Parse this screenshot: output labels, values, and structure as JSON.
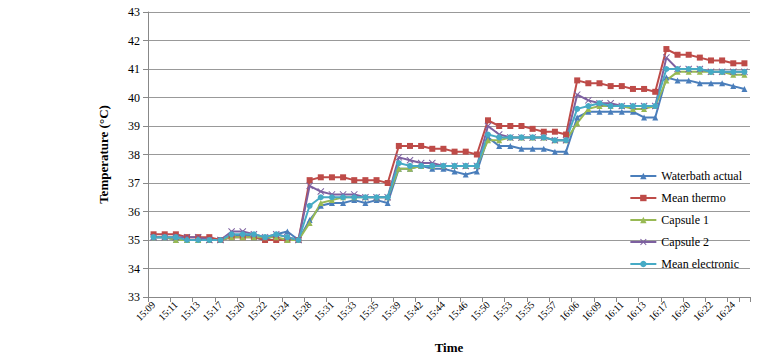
{
  "chart_data": {
    "type": "line",
    "x_label": "Time",
    "y_label": "Temperature (°C)",
    "categories": [
      "15:09",
      null,
      "15:11",
      null,
      "15:13",
      null,
      "15:17",
      null,
      "15:20",
      null,
      "15:22",
      null,
      "15:24",
      null,
      "15:28",
      null,
      "15:31",
      null,
      "15:33",
      null,
      "15:35",
      null,
      "15:39",
      null,
      "15:42",
      null,
      "15:44",
      null,
      "15:46",
      null,
      "15:50",
      null,
      "15:53",
      null,
      "15:55",
      null,
      "15:57",
      null,
      "16:06",
      null,
      "16:09",
      null,
      "16:11",
      null,
      "16:13",
      null,
      "16:17",
      null,
      "16:20",
      null,
      "16:22",
      null,
      "16:24",
      null
    ],
    "series": [
      {
        "name": "Waterbath actual",
        "color": "#4a7ebb",
        "marker": "triangle",
        "values": [
          35.1,
          35.1,
          35.0,
          35.0,
          35.0,
          35.0,
          35.0,
          35.1,
          35.2,
          35.1,
          35.0,
          35.2,
          35.3,
          35.0,
          35.7,
          36.2,
          36.3,
          36.3,
          36.4,
          36.3,
          36.4,
          36.3,
          37.5,
          37.5,
          37.6,
          37.5,
          37.5,
          37.4,
          37.3,
          37.4,
          38.6,
          38.3,
          38.3,
          38.2,
          38.2,
          38.2,
          38.1,
          38.1,
          39.3,
          39.5,
          39.5,
          39.5,
          39.5,
          39.5,
          39.3,
          39.3,
          40.7,
          40.6,
          40.6,
          40.5,
          40.5,
          40.5,
          40.4,
          40.3
        ]
      },
      {
        "name": "Mean thermo",
        "color": "#be4b48",
        "marker": "square",
        "values": [
          35.2,
          35.2,
          35.2,
          35.1,
          35.1,
          35.1,
          35.0,
          35.1,
          35.1,
          35.1,
          35.0,
          35.0,
          35.0,
          35.0,
          37.1,
          37.2,
          37.2,
          37.2,
          37.1,
          37.1,
          37.1,
          37.0,
          38.3,
          38.3,
          38.3,
          38.2,
          38.2,
          38.1,
          38.1,
          38.0,
          39.2,
          39.0,
          39.0,
          39.0,
          38.9,
          38.8,
          38.8,
          38.7,
          40.6,
          40.5,
          40.5,
          40.4,
          40.4,
          40.3,
          40.3,
          40.2,
          41.7,
          41.5,
          41.5,
          41.4,
          41.3,
          41.3,
          41.2,
          41.2
        ]
      },
      {
        "name": "Capsule 1",
        "color": "#98b954",
        "marker": "triangle",
        "values": [
          35.1,
          35.1,
          35.0,
          35.0,
          35.0,
          35.0,
          35.0,
          35.1,
          35.1,
          35.1,
          35.1,
          35.1,
          35.0,
          35.0,
          35.6,
          36.3,
          36.4,
          36.5,
          36.5,
          36.5,
          36.5,
          36.5,
          37.5,
          37.5,
          37.6,
          37.6,
          37.6,
          37.6,
          37.6,
          37.6,
          38.5,
          38.5,
          38.6,
          38.6,
          38.6,
          38.6,
          38.5,
          38.5,
          39.1,
          39.6,
          39.7,
          39.7,
          39.7,
          39.6,
          39.6,
          39.7,
          40.6,
          40.9,
          40.9,
          40.9,
          40.9,
          40.9,
          40.8,
          40.8
        ]
      },
      {
        "name": "Capsule 2",
        "color": "#7d60a0",
        "marker": "x",
        "values": [
          35.1,
          35.1,
          35.1,
          35.1,
          35.1,
          35.0,
          35.0,
          35.3,
          35.3,
          35.2,
          35.1,
          35.2,
          35.1,
          35.0,
          36.9,
          36.7,
          36.6,
          36.6,
          36.6,
          36.5,
          36.5,
          36.5,
          37.9,
          37.8,
          37.7,
          37.7,
          37.6,
          37.6,
          37.6,
          37.6,
          39.0,
          38.7,
          38.6,
          38.6,
          38.6,
          38.6,
          38.5,
          38.5,
          40.1,
          39.9,
          39.8,
          39.8,
          39.7,
          39.7,
          39.7,
          39.7,
          41.4,
          41.0,
          41.0,
          41.0,
          40.9,
          40.9,
          40.9,
          40.9
        ]
      },
      {
        "name": "Mean electronic",
        "color": "#46aac5",
        "marker": "circle",
        "values": [
          35.1,
          35.1,
          35.1,
          35.0,
          35.0,
          35.0,
          35.0,
          35.2,
          35.2,
          35.2,
          35.1,
          35.2,
          35.1,
          35.0,
          36.2,
          36.5,
          36.5,
          36.5,
          36.5,
          36.5,
          36.5,
          36.5,
          37.7,
          37.6,
          37.6,
          37.6,
          37.6,
          37.6,
          37.6,
          37.6,
          38.7,
          38.6,
          38.6,
          38.6,
          38.6,
          38.6,
          38.5,
          38.5,
          39.6,
          39.7,
          39.8,
          39.7,
          39.7,
          39.7,
          39.7,
          39.7,
          41.0,
          41.0,
          41.0,
          41.0,
          40.9,
          40.9,
          40.9,
          40.9
        ]
      }
    ],
    "ylim": [
      33,
      43
    ],
    "yticks": [
      33,
      34,
      35,
      36,
      37,
      38,
      39,
      40,
      41,
      42,
      43
    ],
    "grid": true,
    "legend": "right"
  }
}
